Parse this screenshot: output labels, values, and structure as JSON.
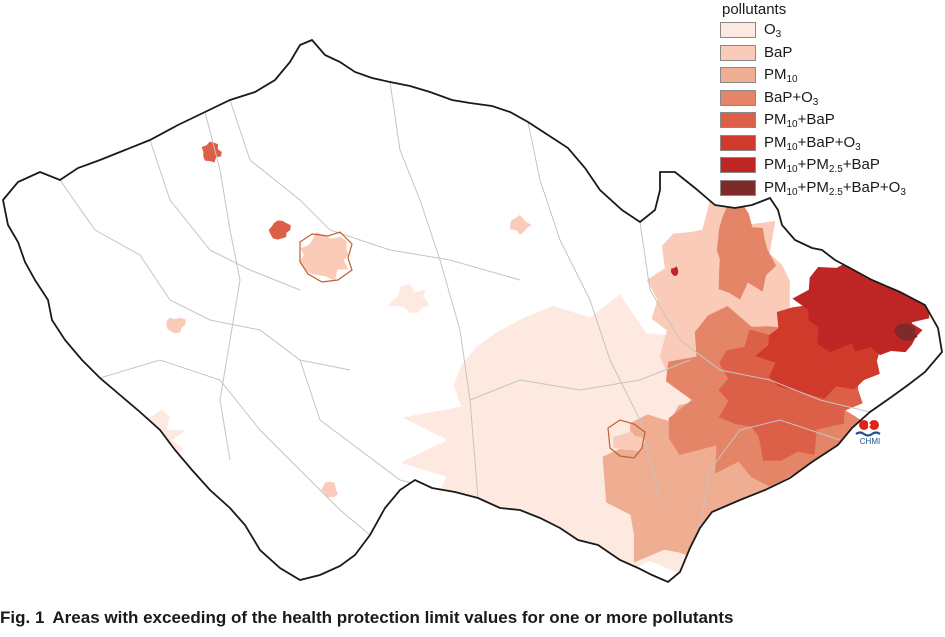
{
  "legend": {
    "title": "pollutants",
    "items": [
      {
        "parts": [
          [
            "O",
            "3"
          ]
        ],
        "color": "#fde9e0"
      },
      {
        "parts": [
          [
            "BaP",
            ""
          ]
        ],
        "color": "#f9cbb8"
      },
      {
        "parts": [
          [
            "PM",
            "10"
          ]
        ],
        "color": "#efad92"
      },
      {
        "parts": [
          [
            "BaP+O",
            "3"
          ]
        ],
        "color": "#e58568"
      },
      {
        "parts": [
          [
            "PM",
            "10"
          ],
          [
            "+BaP",
            ""
          ]
        ],
        "color": "#dc5f47"
      },
      {
        "parts": [
          [
            "PM",
            "10"
          ],
          [
            "+BaP+O",
            "3"
          ]
        ],
        "color": "#d03a2a"
      },
      {
        "parts": [
          [
            "PM",
            "10"
          ],
          [
            "+PM",
            "2.5"
          ],
          [
            "+BaP",
            ""
          ]
        ],
        "color": "#be2525"
      },
      {
        "parts": [
          [
            "PM",
            "10"
          ],
          [
            "+PM",
            "2.5"
          ],
          [
            "+BaP+O",
            "3"
          ]
        ],
        "color": "#7f2a28"
      }
    ]
  },
  "logo": {
    "text": "CHMI",
    "name": "chmi-logo-icon"
  },
  "caption": {
    "fig_number": "Fig. 1",
    "text": "Areas with exceeding of the health protection limit values for one or more pollutants"
  },
  "map": {
    "country_fill": "#ffffff",
    "border_color": "#1a1a1a",
    "district_line_color": "#c4c4c4",
    "prague_outline_color": "#c0602f",
    "brno_outline_color": "#c0602f"
  }
}
